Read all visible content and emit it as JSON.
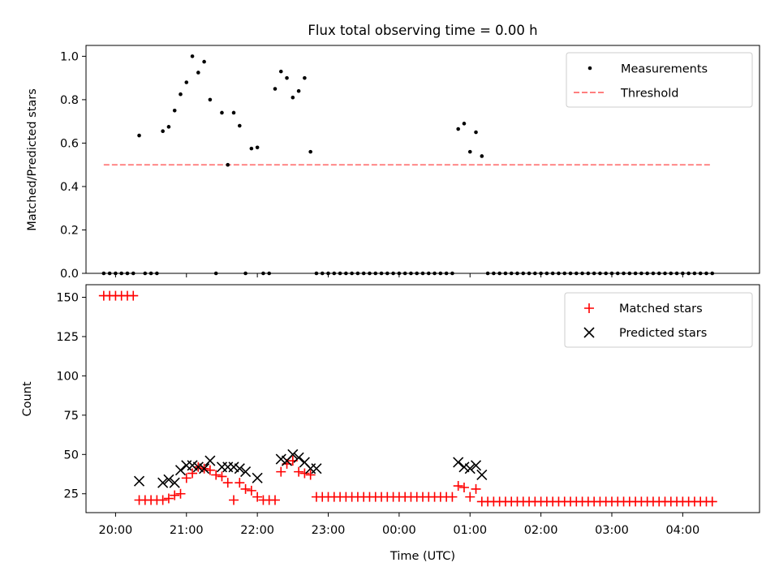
{
  "title": "Flux total observing time = 0.00 h",
  "colors": {
    "measurements": "#000000",
    "threshold": "#ff7f7f",
    "matched": "#ff0000",
    "predicted": "#000000"
  },
  "x_ticks": [
    "20:00",
    "21:00",
    "22:00",
    "23:00",
    "00:00",
    "01:00",
    "02:00",
    "03:00",
    "04:00"
  ],
  "xlabel": "Time (UTC)",
  "chart_data": [
    {
      "type": "scatter",
      "panel": "top",
      "xlabel": "",
      "ylabel": "Matched/Predicted stars",
      "xlim": [
        "19:35",
        "05:05"
      ],
      "ylim": [
        0,
        1.05
      ],
      "yticks": [
        "0.0",
        "0.2",
        "0.4",
        "0.6",
        "0.8",
        "1.0"
      ],
      "legend": [
        "Measurements",
        "Threshold"
      ],
      "legend_position": "upper right",
      "threshold": {
        "name": "Threshold",
        "value": 0.5,
        "x_start": "19:50",
        "x_end": "04:25",
        "style": "dashed"
      },
      "series": [
        {
          "name": "Measurements",
          "marker": "dot",
          "points": [
            [
              "19:50",
              0
            ],
            [
              "19:55",
              0
            ],
            [
              "20:00",
              0
            ],
            [
              "20:05",
              0
            ],
            [
              "20:10",
              0
            ],
            [
              "20:15",
              0
            ],
            [
              "20:20",
              0.635
            ],
            [
              "20:25",
              0
            ],
            [
              "20:30",
              0
            ],
            [
              "20:35",
              0
            ],
            [
              "20:40",
              0.655
            ],
            [
              "20:45",
              0.675
            ],
            [
              "20:50",
              0.75
            ],
            [
              "20:55",
              0.825
            ],
            [
              "21:00",
              0.88
            ],
            [
              "21:05",
              1.0
            ],
            [
              "21:10",
              0.925
            ],
            [
              "21:15",
              0.975
            ],
            [
              "21:20",
              0.8
            ],
            [
              "21:25",
              0
            ],
            [
              "21:30",
              0.74
            ],
            [
              "21:35",
              0.5
            ],
            [
              "21:40",
              0.74
            ],
            [
              "21:45",
              0.68
            ],
            [
              "21:50",
              0
            ],
            [
              "21:55",
              0.575
            ],
            [
              "22:00",
              0.58
            ],
            [
              "22:05",
              0
            ],
            [
              "22:10",
              0
            ],
            [
              "22:15",
              0.85
            ],
            [
              "22:20",
              0.93
            ],
            [
              "22:25",
              0.9
            ],
            [
              "22:30",
              0.81
            ],
            [
              "22:35",
              0.84
            ],
            [
              "22:40",
              0.9
            ],
            [
              "22:45",
              0.56
            ],
            [
              "22:50",
              0
            ],
            [
              "22:55",
              0
            ],
            [
              "23:00",
              0
            ],
            [
              "23:05",
              0
            ],
            [
              "23:10",
              0
            ],
            [
              "23:15",
              0
            ],
            [
              "23:20",
              0
            ],
            [
              "23:25",
              0
            ],
            [
              "23:30",
              0
            ],
            [
              "23:35",
              0
            ],
            [
              "23:40",
              0
            ],
            [
              "23:45",
              0
            ],
            [
              "23:50",
              0
            ],
            [
              "23:55",
              0
            ],
            [
              "00:00",
              0
            ],
            [
              "00:05",
              0
            ],
            [
              "00:10",
              0
            ],
            [
              "00:15",
              0
            ],
            [
              "00:20",
              0
            ],
            [
              "00:25",
              0
            ],
            [
              "00:30",
              0
            ],
            [
              "00:35",
              0
            ],
            [
              "00:40",
              0
            ],
            [
              "00:45",
              0
            ],
            [
              "00:50",
              0.665
            ],
            [
              "00:55",
              0.69
            ],
            [
              "01:00",
              0.56
            ],
            [
              "01:05",
              0.65
            ],
            [
              "01:10",
              0.54
            ],
            [
              "01:15",
              0
            ],
            [
              "01:20",
              0
            ],
            [
              "01:25",
              0
            ],
            [
              "01:30",
              0
            ],
            [
              "01:35",
              0
            ],
            [
              "01:40",
              0
            ],
            [
              "01:45",
              0
            ],
            [
              "01:50",
              0
            ],
            [
              "01:55",
              0
            ],
            [
              "02:00",
              0
            ],
            [
              "02:05",
              0
            ],
            [
              "02:10",
              0
            ],
            [
              "02:15",
              0
            ],
            [
              "02:20",
              0
            ],
            [
              "02:25",
              0
            ],
            [
              "02:30",
              0
            ],
            [
              "02:35",
              0
            ],
            [
              "02:40",
              0
            ],
            [
              "02:45",
              0
            ],
            [
              "02:50",
              0
            ],
            [
              "02:55",
              0
            ],
            [
              "03:00",
              0
            ],
            [
              "03:05",
              0
            ],
            [
              "03:10",
              0
            ],
            [
              "03:15",
              0
            ],
            [
              "03:20",
              0
            ],
            [
              "03:25",
              0
            ],
            [
              "03:30",
              0
            ],
            [
              "03:35",
              0
            ],
            [
              "03:40",
              0
            ],
            [
              "03:45",
              0
            ],
            [
              "03:50",
              0
            ],
            [
              "03:55",
              0
            ],
            [
              "04:00",
              0
            ],
            [
              "04:05",
              0
            ],
            [
              "04:10",
              0
            ],
            [
              "04:15",
              0
            ],
            [
              "04:20",
              0
            ],
            [
              "04:25",
              0
            ]
          ]
        }
      ]
    },
    {
      "type": "scatter",
      "panel": "bottom",
      "xlabel": "Time (UTC)",
      "ylabel": "Count",
      "xlim": [
        "19:35",
        "05:05"
      ],
      "ylim": [
        13,
        158
      ],
      "yticks": [
        "25",
        "50",
        "75",
        "100",
        "125",
        "150"
      ],
      "legend": [
        "Matched stars",
        "Predicted stars"
      ],
      "legend_position": "upper right",
      "series": [
        {
          "name": "Matched stars",
          "marker": "plus",
          "points": [
            [
              "19:50",
              151
            ],
            [
              "19:55",
              151
            ],
            [
              "20:00",
              151
            ],
            [
              "20:05",
              151
            ],
            [
              "20:10",
              151
            ],
            [
              "20:15",
              151
            ],
            [
              "20:20",
              21
            ],
            [
              "20:25",
              21
            ],
            [
              "20:30",
              21
            ],
            [
              "20:35",
              21
            ],
            [
              "20:40",
              21
            ],
            [
              "20:45",
              22
            ],
            [
              "20:50",
              24
            ],
            [
              "20:55",
              25
            ],
            [
              "21:00",
              35
            ],
            [
              "21:05",
              38
            ],
            [
              "21:10",
              42
            ],
            [
              "21:15",
              41
            ],
            [
              "21:20",
              40
            ],
            [
              "21:25",
              37
            ],
            [
              "21:30",
              36
            ],
            [
              "21:35",
              32
            ],
            [
              "21:40",
              21
            ],
            [
              "21:45",
              32
            ],
            [
              "21:50",
              28
            ],
            [
              "21:55",
              27
            ],
            [
              "22:00",
              23
            ],
            [
              "22:05",
              21
            ],
            [
              "22:10",
              21
            ],
            [
              "22:15",
              21
            ],
            [
              "22:20",
              39
            ],
            [
              "22:25",
              44
            ],
            [
              "22:30",
              46
            ],
            [
              "22:35",
              39
            ],
            [
              "22:40",
              38
            ],
            [
              "22:45",
              37
            ],
            [
              "22:50",
              23
            ],
            [
              "22:55",
              23
            ],
            [
              "23:00",
              23
            ],
            [
              "23:05",
              23
            ],
            [
              "23:10",
              23
            ],
            [
              "23:15",
              23
            ],
            [
              "23:20",
              23
            ],
            [
              "23:25",
              23
            ],
            [
              "23:30",
              23
            ],
            [
              "23:35",
              23
            ],
            [
              "23:40",
              23
            ],
            [
              "23:45",
              23
            ],
            [
              "23:50",
              23
            ],
            [
              "23:55",
              23
            ],
            [
              "00:00",
              23
            ],
            [
              "00:05",
              23
            ],
            [
              "00:10",
              23
            ],
            [
              "00:15",
              23
            ],
            [
              "00:20",
              23
            ],
            [
              "00:25",
              23
            ],
            [
              "00:30",
              23
            ],
            [
              "00:35",
              23
            ],
            [
              "00:40",
              23
            ],
            [
              "00:45",
              23
            ],
            [
              "00:50",
              30
            ],
            [
              "00:55",
              29
            ],
            [
              "01:00",
              23
            ],
            [
              "01:05",
              28
            ],
            [
              "01:10",
              20
            ],
            [
              "01:15",
              20
            ],
            [
              "01:20",
              20
            ],
            [
              "01:25",
              20
            ],
            [
              "01:30",
              20
            ],
            [
              "01:35",
              20
            ],
            [
              "01:40",
              20
            ],
            [
              "01:45",
              20
            ],
            [
              "01:50",
              20
            ],
            [
              "01:55",
              20
            ],
            [
              "02:00",
              20
            ],
            [
              "02:05",
              20
            ],
            [
              "02:10",
              20
            ],
            [
              "02:15",
              20
            ],
            [
              "02:20",
              20
            ],
            [
              "02:25",
              20
            ],
            [
              "02:30",
              20
            ],
            [
              "02:35",
              20
            ],
            [
              "02:40",
              20
            ],
            [
              "02:45",
              20
            ],
            [
              "02:50",
              20
            ],
            [
              "02:55",
              20
            ],
            [
              "03:00",
              20
            ],
            [
              "03:05",
              20
            ],
            [
              "03:10",
              20
            ],
            [
              "03:15",
              20
            ],
            [
              "03:20",
              20
            ],
            [
              "03:25",
              20
            ],
            [
              "03:30",
              20
            ],
            [
              "03:35",
              20
            ],
            [
              "03:40",
              20
            ],
            [
              "03:45",
              20
            ],
            [
              "03:50",
              20
            ],
            [
              "03:55",
              20
            ],
            [
              "04:00",
              20
            ],
            [
              "04:05",
              20
            ],
            [
              "04:10",
              20
            ],
            [
              "04:15",
              20
            ],
            [
              "04:20",
              20
            ],
            [
              "04:25",
              20
            ]
          ]
        },
        {
          "name": "Predicted stars",
          "marker": "x",
          "points": [
            [
              "20:20",
              33
            ],
            [
              "20:40",
              32
            ],
            [
              "20:45",
              34
            ],
            [
              "20:50",
              32
            ],
            [
              "20:55",
              40
            ],
            [
              "21:00",
              43
            ],
            [
              "21:05",
              43
            ],
            [
              "21:10",
              42
            ],
            [
              "21:15",
              41
            ],
            [
              "21:20",
              46
            ],
            [
              "21:30",
              42
            ],
            [
              "21:35",
              42
            ],
            [
              "21:40",
              42
            ],
            [
              "21:45",
              41
            ],
            [
              "21:50",
              39
            ],
            [
              "22:00",
              35
            ],
            [
              "22:20",
              47
            ],
            [
              "22:25",
              46
            ],
            [
              "22:30",
              50
            ],
            [
              "22:35",
              48
            ],
            [
              "22:40",
              45
            ],
            [
              "22:45",
              41
            ],
            [
              "22:50",
              41
            ],
            [
              "00:50",
              45
            ],
            [
              "00:55",
              42
            ],
            [
              "01:00",
              41
            ],
            [
              "01:05",
              43
            ],
            [
              "01:10",
              37
            ]
          ]
        }
      ]
    }
  ]
}
